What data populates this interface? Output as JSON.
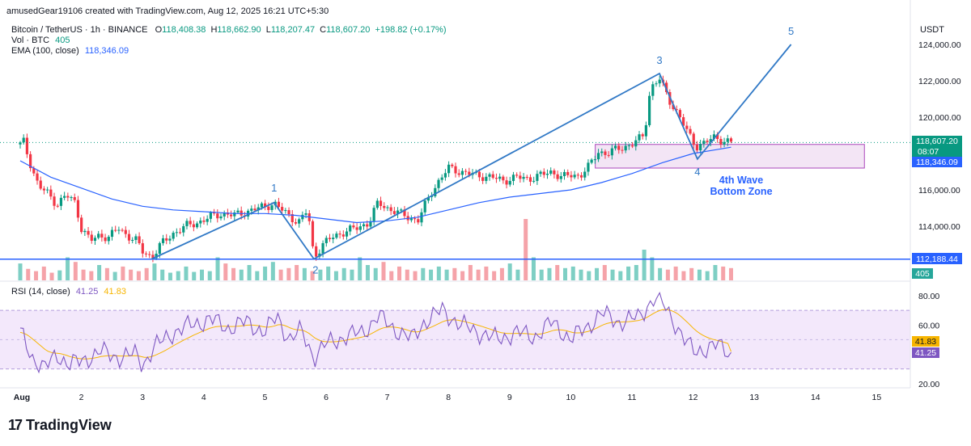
{
  "header": {
    "attribution": "amusedGear19106 created with TradingView.com, Aug 12, 2025 16:21 UTC+5:30",
    "symbol": "Bitcoin / TetherUS · 1h · BINANCE",
    "ohlc": {
      "o_label": "O",
      "o": "118,408.38",
      "h_label": "H",
      "h": "118,662.90",
      "l_label": "L",
      "l": "118,207.47",
      "c_label": "C",
      "c": "118,607.20",
      "change": "+198.82 (+0.17%)"
    },
    "vol_label": "Vol · BTC",
    "vol_value": "405",
    "ema_label": "EMA (100, close)",
    "ema_value": "118,346.09",
    "rsi_label": "RSI (14, close)",
    "rsi_value": "41.25",
    "rsi_ma_value": "41.83",
    "currency": "USDT"
  },
  "price_axis": {
    "ticks": [
      "124,000.00",
      "122,000.00",
      "120,000.00",
      "116,000.00",
      "114,000.00"
    ],
    "last_price": "118,607.20",
    "countdown": "08:07",
    "ema_tag": "118,346.09",
    "support_tag": "112,188.44",
    "volume_tag": "405"
  },
  "rsi_axis": {
    "ticks": [
      "80.00",
      "60.00",
      "20.00"
    ],
    "ma_tag": "41.83",
    "rsi_tag": "41.25"
  },
  "time_axis": [
    "Aug",
    "2",
    "3",
    "4",
    "5",
    "6",
    "7",
    "8",
    "9",
    "10",
    "11",
    "12",
    "13",
    "14",
    "15"
  ],
  "annotations": {
    "wave1": "1",
    "wave2": "2",
    "wave3": "3",
    "wave4": "4",
    "wave5": "5",
    "zone_line1": "4th Wave",
    "zone_line2": "Bottom Zone"
  },
  "colors": {
    "up": "#089981",
    "down": "#f23645",
    "ema": "#2962ff",
    "wave": "#3179c6",
    "zone_fill": "#f3e5f5",
    "zone_border": "#ab47bc",
    "rsi": "#7e57c2",
    "rsi_ma": "#f7b500",
    "support": "#2962ff"
  },
  "brand": "TradingView",
  "chart_data": {
    "type": "candlestick",
    "symbol": "BTCUSDT",
    "interval": "1h",
    "price_range": [
      111300,
      125400
    ],
    "rsi_range": [
      15,
      90
    ],
    "support_level": 112188.44,
    "zone": {
      "low": 117200,
      "high": 118500,
      "label": "4th Wave Bottom Zone"
    },
    "wave_points": [
      {
        "label": "1",
        "day": 5.15,
        "price": 115300
      },
      {
        "label": "2",
        "day": 5.8,
        "price": 112200
      },
      {
        "label": "3",
        "day": 11.45,
        "price": 122400
      },
      {
        "label": "4",
        "day": 12.07,
        "price": 117700
      },
      {
        "label": "5",
        "day": 13.6,
        "price": 124000
      }
    ],
    "wave_start": {
      "day": 3.15,
      "price": 112200
    },
    "close_path": [
      [
        1.0,
        118500
      ],
      [
        1.05,
        118700
      ],
      [
        1.15,
        117600
      ],
      [
        1.3,
        116200
      ],
      [
        1.45,
        115800
      ],
      [
        1.6,
        115200
      ],
      [
        1.75,
        115700
      ],
      [
        1.9,
        115300
      ],
      [
        2.0,
        113900
      ],
      [
        2.15,
        113200
      ],
      [
        2.3,
        113500
      ],
      [
        2.45,
        113400
      ],
      [
        2.6,
        113900
      ],
      [
        2.75,
        113500
      ],
      [
        2.9,
        113200
      ],
      [
        3.0,
        112600
      ],
      [
        3.15,
        112300
      ],
      [
        3.3,
        113000
      ],
      [
        3.5,
        113600
      ],
      [
        3.7,
        114000
      ],
      [
        3.9,
        114200
      ],
      [
        4.1,
        114500
      ],
      [
        4.3,
        114700
      ],
      [
        4.5,
        114600
      ],
      [
        4.7,
        114800
      ],
      [
        4.9,
        115000
      ],
      [
        5.15,
        115250
      ],
      [
        5.35,
        114700
      ],
      [
        5.55,
        114200
      ],
      [
        5.7,
        114900
      ],
      [
        5.8,
        112300
      ],
      [
        5.95,
        113000
      ],
      [
        6.1,
        113400
      ],
      [
        6.3,
        113700
      ],
      [
        6.5,
        113900
      ],
      [
        6.7,
        114200
      ],
      [
        6.85,
        115300
      ],
      [
        7.0,
        115000
      ],
      [
        7.2,
        114700
      ],
      [
        7.35,
        114500
      ],
      [
        7.5,
        114300
      ],
      [
        7.65,
        115400
      ],
      [
        7.8,
        116300
      ],
      [
        8.0,
        117200
      ],
      [
        8.2,
        117000
      ],
      [
        8.45,
        116800
      ],
      [
        8.7,
        116700
      ],
      [
        8.9,
        116500
      ],
      [
        9.1,
        116700
      ],
      [
        9.3,
        116600
      ],
      [
        9.5,
        116800
      ],
      [
        9.7,
        117000
      ],
      [
        9.85,
        116700
      ],
      [
        10.0,
        116800
      ],
      [
        10.15,
        116800
      ],
      [
        10.3,
        117300
      ],
      [
        10.45,
        118100
      ],
      [
        10.6,
        118000
      ],
      [
        10.8,
        118300
      ],
      [
        11.0,
        118500
      ],
      [
        11.2,
        119000
      ],
      [
        11.3,
        121600
      ],
      [
        11.45,
        122100
      ],
      [
        11.6,
        121000
      ],
      [
        11.75,
        120200
      ],
      [
        11.9,
        119200
      ],
      [
        12.05,
        118400
      ],
      [
        12.2,
        118600
      ],
      [
        12.35,
        118900
      ],
      [
        12.5,
        118700
      ],
      [
        12.62,
        118600
      ]
    ],
    "ema_path": [
      [
        1.0,
        117600
      ],
      [
        1.5,
        116700
      ],
      [
        2.0,
        116100
      ],
      [
        2.5,
        115500
      ],
      [
        3.0,
        115100
      ],
      [
        3.5,
        114900
      ],
      [
        4.0,
        114800
      ],
      [
        4.5,
        114700
      ],
      [
        5.0,
        114700
      ],
      [
        5.5,
        114600
      ],
      [
        6.0,
        114400
      ],
      [
        6.5,
        114200
      ],
      [
        7.0,
        114300
      ],
      [
        7.5,
        114500
      ],
      [
        8.0,
        114900
      ],
      [
        8.5,
        115300
      ],
      [
        9.0,
        115600
      ],
      [
        9.5,
        115800
      ],
      [
        10.0,
        116000
      ],
      [
        10.5,
        116400
      ],
      [
        11.0,
        116900
      ],
      [
        11.5,
        117500
      ],
      [
        12.0,
        118000
      ],
      [
        12.62,
        118346
      ]
    ],
    "rsi_path": [
      [
        1.0,
        55
      ],
      [
        1.2,
        38
      ],
      [
        1.4,
        30
      ],
      [
        1.6,
        40
      ],
      [
        1.8,
        33
      ],
      [
        2.0,
        35
      ],
      [
        2.3,
        42
      ],
      [
        2.6,
        38
      ],
      [
        2.9,
        40
      ],
      [
        3.0,
        33
      ],
      [
        3.2,
        45
      ],
      [
        3.5,
        55
      ],
      [
        3.8,
        60
      ],
      [
        4.1,
        64
      ],
      [
        4.4,
        58
      ],
      [
        4.7,
        62
      ],
      [
        5.0,
        55
      ],
      [
        5.2,
        66
      ],
      [
        5.4,
        50
      ],
      [
        5.6,
        56
      ],
      [
        5.8,
        38
      ],
      [
        6.0,
        47
      ],
      [
        6.3,
        52
      ],
      [
        6.6,
        55
      ],
      [
        6.85,
        66
      ],
      [
        7.1,
        58
      ],
      [
        7.4,
        50
      ],
      [
        7.6,
        62
      ],
      [
        7.9,
        70
      ],
      [
        8.2,
        60
      ],
      [
        8.5,
        55
      ],
      [
        8.8,
        50
      ],
      [
        9.1,
        55
      ],
      [
        9.4,
        52
      ],
      [
        9.7,
        62
      ],
      [
        10.0,
        50
      ],
      [
        10.3,
        60
      ],
      [
        10.5,
        68
      ],
      [
        10.8,
        62
      ],
      [
        11.1,
        65
      ],
      [
        11.35,
        78
      ],
      [
        11.5,
        75
      ],
      [
        11.7,
        62
      ],
      [
        11.85,
        50
      ],
      [
        12.0,
        42
      ],
      [
        12.2,
        44
      ],
      [
        12.4,
        46
      ],
      [
        12.62,
        41.25
      ]
    ],
    "volume_bars": [
      22,
      15,
      12,
      18,
      10,
      13,
      30,
      24,
      14,
      12,
      20,
      16,
      11,
      18,
      14,
      12,
      16,
      22,
      14,
      10,
      12,
      18,
      11,
      14,
      12,
      30,
      22,
      16,
      14,
      20,
      12,
      18,
      24,
      14,
      16,
      20,
      16,
      12,
      14,
      18,
      12,
      16,
      14,
      30,
      20,
      16,
      24,
      12,
      18,
      14,
      12,
      16,
      14,
      18,
      14,
      16,
      12,
      20,
      14,
      18,
      12,
      16,
      22,
      14,
      80,
      30,
      14,
      16,
      20,
      16,
      18,
      14,
      12,
      16,
      20,
      14,
      12,
      18,
      20,
      40,
      30,
      16,
      14,
      18,
      12,
      16,
      14,
      12,
      20,
      18,
      16
    ]
  }
}
